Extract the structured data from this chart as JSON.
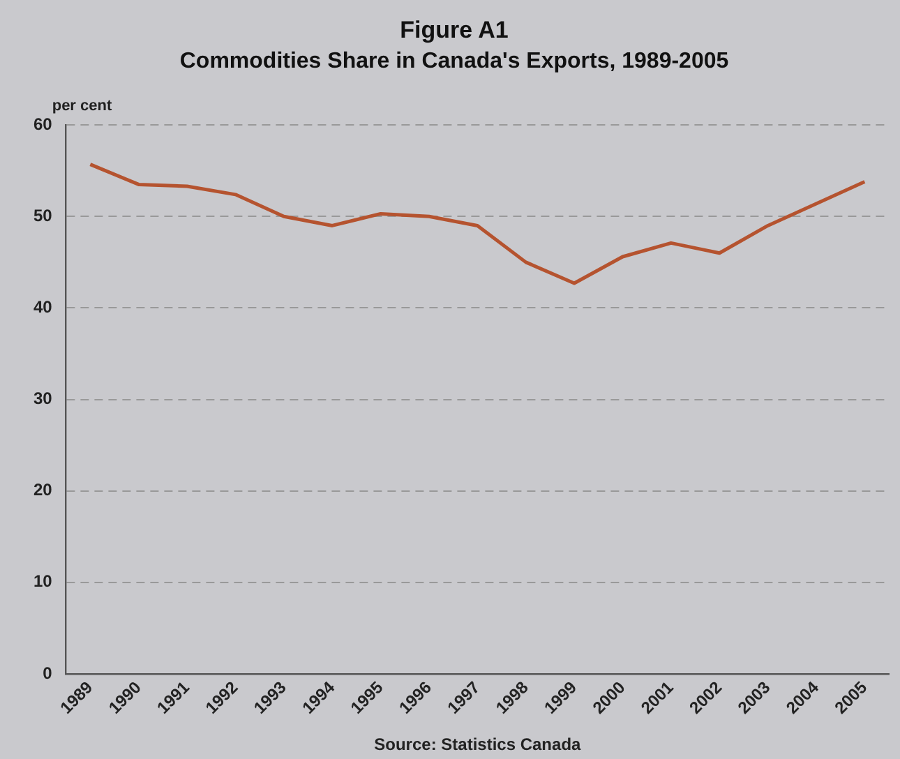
{
  "chart_data": {
    "type": "line",
    "title": "Figure A1",
    "subtitle": "Commodities Share in Canada's Exports, 1989-2005",
    "ylabel": "per cent",
    "annotations": [
      "Source: Statistics Canada"
    ],
    "categories": [
      "1989",
      "1990",
      "1991",
      "1992",
      "1993",
      "1994",
      "1995",
      "1996",
      "1997",
      "1998",
      "1999",
      "2000",
      "2001",
      "2002",
      "2003",
      "2004",
      "2005"
    ],
    "series": [
      {
        "color": "#b5532f",
        "values": [
          55.7,
          53.5,
          53.3,
          52.4,
          50.0,
          49.0,
          50.3,
          50.0,
          49.0,
          45.0,
          42.7,
          45.6,
          47.1,
          46.0,
          49.0,
          51.4,
          53.8
        ]
      }
    ],
    "ylim": [
      0,
      60
    ],
    "yticks": [
      0,
      10,
      20,
      30,
      40,
      50,
      60
    ],
    "grid": "y",
    "legend": false,
    "marker": "none",
    "line_style": "solid"
  }
}
